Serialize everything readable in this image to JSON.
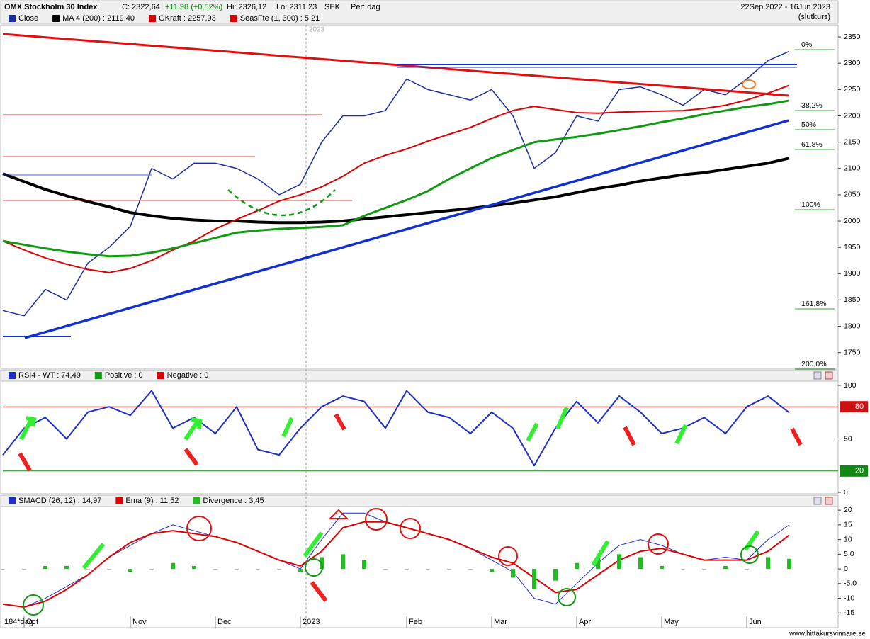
{
  "header": {
    "title": "OMX Stockholm 30 Index",
    "close": "C: 2322,64",
    "change": "+11,98 (+0,52%)",
    "high": "Hi: 2326,12",
    "low": "Lo: 2311,23",
    "currency": "SEK",
    "period": "Per: dag",
    "range": "22Sep 2022 - 16Jun 2023",
    "price_type": "(slutkurs)",
    "footer": "www.hittakursvinnare.se"
  },
  "chart_data": [
    {
      "type": "line",
      "watermark": "2023",
      "x_label": "184*dag",
      "categories": [
        null,
        "Oct",
        null,
        null,
        null,
        null,
        "Nov",
        null,
        null,
        null,
        "Dec",
        null,
        null,
        null,
        "2023",
        null,
        null,
        null,
        null,
        "Feb",
        null,
        null,
        null,
        "Mar",
        null,
        null,
        null,
        "Apr",
        null,
        null,
        null,
        "May",
        null,
        null,
        null,
        "Jun",
        null,
        null
      ],
      "series": [
        {
          "name": "Close",
          "color": "#1c2fa0",
          "width": 1.5,
          "values": [
            1830,
            1820,
            1870,
            1850,
            1920,
            1950,
            1990,
            2100,
            2080,
            2110,
            2110,
            2100,
            2080,
            2050,
            2070,
            2150,
            2200,
            2200,
            2210,
            2270,
            2250,
            2240,
            2230,
            2250,
            2200,
            2100,
            2130,
            2200,
            2190,
            2250,
            2255,
            2240,
            2220,
            2250,
            2240,
            2270,
            2305,
            2322.64
          ]
        },
        {
          "name": "MA 4 (200) : 2119,40",
          "color": "#000000",
          "width": 4,
          "values": [
            2090,
            2075,
            2060,
            2048,
            2037,
            2027,
            2016,
            2010,
            2005,
            2002,
            2000,
            2000,
            1998,
            1997,
            1997,
            1998,
            2000,
            2004,
            2008,
            2012,
            2016,
            2020,
            2024,
            2029,
            2034,
            2040,
            2046,
            2054,
            2062,
            2068,
            2076,
            2082,
            2088,
            2092,
            2098,
            2104,
            2110,
            2119.4
          ]
        },
        {
          "name": "GKraft : 2257,93",
          "color": "#dd0000",
          "width": 2,
          "values": [
            1962,
            1945,
            1930,
            1918,
            1908,
            1902,
            1910,
            1925,
            1945,
            1962,
            1985,
            2003,
            2020,
            2038,
            2050,
            2065,
            2085,
            2110,
            2125,
            2137,
            2152,
            2165,
            2178,
            2195,
            2210,
            2218,
            2212,
            2206,
            2205,
            2207,
            2208,
            2209,
            2210,
            2214,
            2220,
            2230,
            2243,
            2257.93
          ]
        },
        {
          "color": "#119911",
          "width": 3,
          "values": [
            1962,
            1955,
            1948,
            1942,
            1937,
            1933,
            1934,
            1940,
            1948,
            1958,
            1968,
            1978,
            1982,
            1985,
            1987,
            1989,
            1992,
            2010,
            2025,
            2040,
            2057,
            2080,
            2100,
            2120,
            2135,
            2150,
            2155,
            2160,
            2166,
            2173,
            2180,
            2188,
            2195,
            2203,
            2210,
            2217,
            2222,
            2229
          ]
        }
      ],
      "legend_extra": [
        {
          "name": "SeasFte (1, 300) : 5,21",
          "color": "#dd0000"
        }
      ],
      "fib_labels": [
        "0%",
        "38,2%",
        "50%",
        "61,8%",
        "100%",
        "161,8%",
        "200,0%"
      ],
      "ylim": [
        1720,
        2373
      ],
      "yticks": [
        1750,
        1800,
        1850,
        1900,
        1950,
        2000,
        2050,
        2100,
        2150,
        2200,
        2250,
        2300,
        2350
      ]
    },
    {
      "type": "line",
      "series": [
        {
          "name": "RSI4 - WT : 74,49",
          "color": "#1c2fc8",
          "width": 2,
          "values": [
            35,
            60,
            70,
            50,
            75,
            80,
            72,
            95,
            60,
            70,
            55,
            80,
            40,
            35,
            60,
            80,
            90,
            85,
            60,
            95,
            75,
            70,
            55,
            75,
            60,
            25,
            60,
            85,
            65,
            90,
            75,
            55,
            60,
            70,
            55,
            80,
            90,
            74.49
          ]
        }
      ],
      "legend_extra": [
        {
          "name": "Positive : 0",
          "color": "#119911"
        },
        {
          "name": "Negative : 0",
          "color": "#dd0000"
        }
      ],
      "hlines": [
        {
          "value": 80,
          "color": "#cc1111"
        },
        {
          "value": 20,
          "color": "#118811"
        }
      ],
      "ylim": [
        0,
        100
      ],
      "yticks": [
        0,
        50,
        100
      ]
    },
    {
      "type": "line",
      "series": [
        {
          "name": "SMACD (26, 12) : 14,97",
          "color": "#1c2fc8",
          "width": 1,
          "values": [
            -12,
            -13,
            -10,
            -6,
            -2,
            4,
            8,
            12,
            15,
            13,
            11,
            9,
            6,
            3,
            0,
            10,
            19,
            19,
            16,
            14,
            12,
            10,
            7,
            3,
            -1,
            -10,
            -12,
            -5,
            2,
            8,
            10,
            8,
            5,
            3,
            4,
            3,
            10,
            14.97
          ]
        },
        {
          "name": "Ema (9) : 11,52",
          "color": "#dd0000",
          "width": 2,
          "values": [
            -12,
            -13,
            -11,
            -7,
            -2,
            4,
            9,
            12,
            13,
            12,
            11,
            9,
            6,
            3,
            1,
            6,
            14,
            16,
            16,
            14,
            12,
            10,
            7,
            4,
            2,
            -3,
            -8,
            -7,
            -2,
            3,
            6,
            7,
            5,
            3,
            3,
            3,
            6,
            11.52
          ]
        },
        {
          "name": "Divergence : 3,45",
          "color": "#22bb22",
          "kind": "bar",
          "values": [
            0,
            0,
            1,
            1,
            0,
            0,
            -1,
            0,
            2,
            1,
            0,
            0,
            0,
            0,
            -1,
            4,
            5,
            3,
            0,
            0,
            0,
            0,
            0,
            -1,
            -3,
            -7,
            -4,
            2,
            4,
            5,
            4,
            1,
            0,
            0,
            1,
            0,
            4,
            3.45
          ]
        }
      ],
      "ylim": [
        -20,
        21
      ],
      "yticks": [
        -15,
        -10,
        {
          "value": -5,
          "label": "-5.0"
        },
        0,
        {
          "value": 5,
          "label": "5.0"
        },
        10,
        15,
        20
      ]
    }
  ]
}
